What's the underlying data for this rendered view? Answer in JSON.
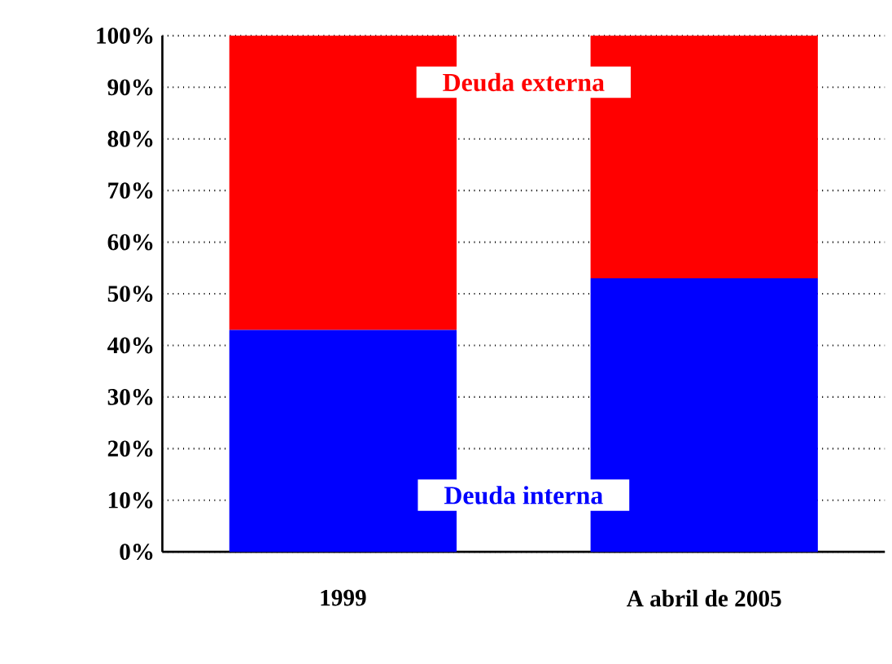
{
  "chart_data": {
    "type": "bar",
    "stacked": true,
    "categories": [
      "1999",
      "A abril de 2005"
    ],
    "series": [
      {
        "name": "Deuda interna",
        "color": "#0000ff",
        "values": [
          43,
          53
        ]
      },
      {
        "name": "Deuda externa",
        "color": "#ff0000",
        "values": [
          57,
          47
        ]
      }
    ],
    "ylim": [
      0,
      100
    ],
    "yticks": [
      {
        "value": 0,
        "label": "0%"
      },
      {
        "value": 10,
        "label": "10%"
      },
      {
        "value": 20,
        "label": "20%"
      },
      {
        "value": 30,
        "label": "30%"
      },
      {
        "value": 40,
        "label": "40%"
      },
      {
        "value": 50,
        "label": "50%"
      },
      {
        "value": 60,
        "label": "60%"
      },
      {
        "value": 70,
        "label": "70%"
      },
      {
        "value": 80,
        "label": "80%"
      },
      {
        "value": 90,
        "label": "90%"
      },
      {
        "value": 100,
        "label": "100%"
      }
    ],
    "grid": "y"
  }
}
